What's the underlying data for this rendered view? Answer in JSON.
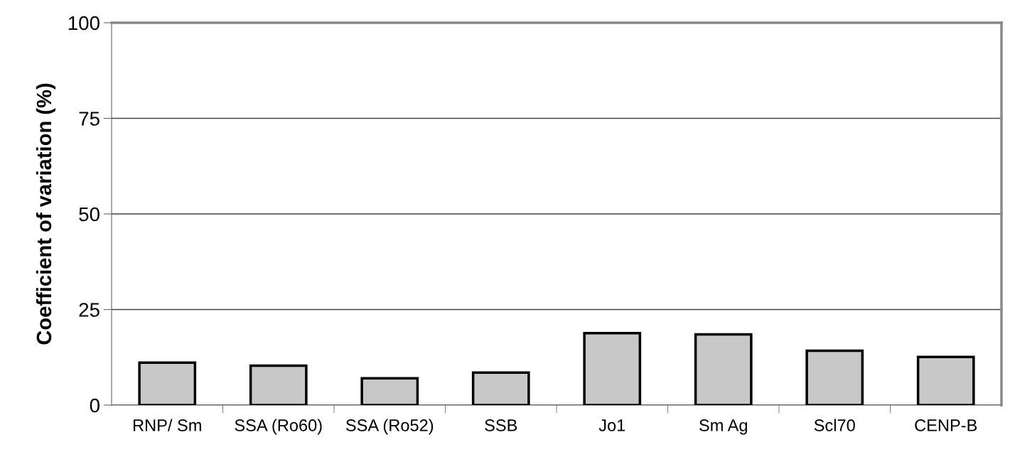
{
  "chart_data": {
    "type": "bar",
    "ylabel": "Coefficient of variation (%)",
    "categories": [
      "RNP/ Sm",
      "SSA (Ro60)",
      "SSA (Ro52)",
      "SSB",
      "Jo1",
      "Sm Ag",
      "Scl70",
      "CENP-B"
    ],
    "values": [
      11.1,
      10.3,
      7.0,
      8.5,
      18.8,
      18.5,
      14.2,
      12.6
    ],
    "color": "#c8c8c8",
    "ylim": [
      0,
      100
    ],
    "yticks": [
      0,
      25,
      50,
      75,
      100
    ],
    "grid": "y",
    "legend": false
  }
}
